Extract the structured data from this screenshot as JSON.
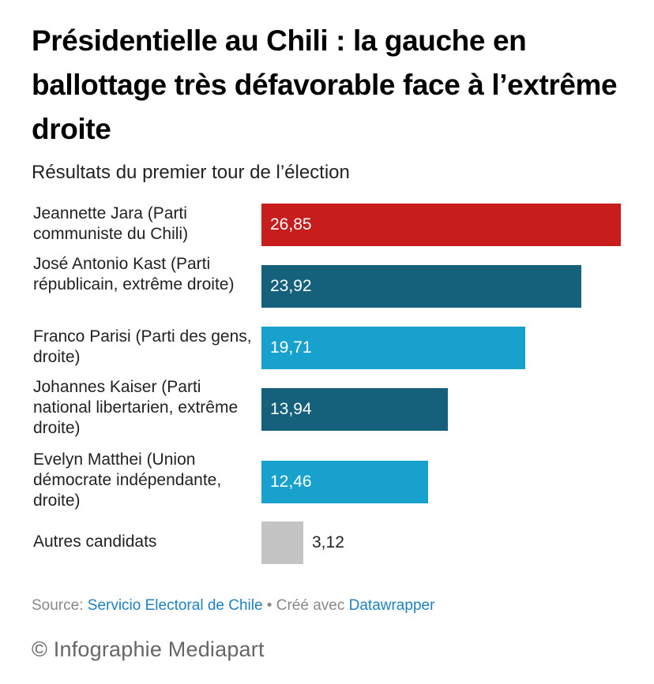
{
  "header": {
    "title": "Présidentielle au Chili : la gauche en ballottage très défavorable face à l’extrême droite",
    "subtitle": "Résultats du premier tour de l’élection"
  },
  "chart_data": {
    "type": "bar",
    "orientation": "horizontal",
    "title": "Présidentielle au Chili : la gauche en ballottage très défavorable face à l’extrême droite",
    "subtitle": "Résultats du premier tour de l’élection",
    "xlabel": "",
    "ylabel": "",
    "xlim": [
      0,
      26.85
    ],
    "grid": false,
    "categories": [
      "Jeannette Jara (Parti communiste du Chili)",
      "José Antonio Kast (Parti républicain, extrême droite)",
      "Franco Parisi (Parti des gens, droite)",
      "Johannes Kaiser (Parti national libertarien, extrême droite)",
      "Evelyn Matthei (Union démocrate indépendante, droite)",
      "Autres candidats"
    ],
    "values": [
      26.85,
      23.92,
      19.71,
      13.94,
      12.46,
      3.12
    ],
    "value_labels": [
      "26,85",
      "23,92",
      "19,71",
      "13,94",
      "12,46",
      "3,12"
    ],
    "colors": [
      "#c71e1d",
      "#15607a",
      "#18a1cd",
      "#15607a",
      "#18a1cd",
      "#c4c4c4"
    ]
  },
  "footer": {
    "source_prefix": "Source: ",
    "source_link": "Servicio Electoral de Chile",
    "separator": " • Créé avec ",
    "tool_link": "Datawrapper",
    "credit": "© Infographie Mediapart"
  }
}
